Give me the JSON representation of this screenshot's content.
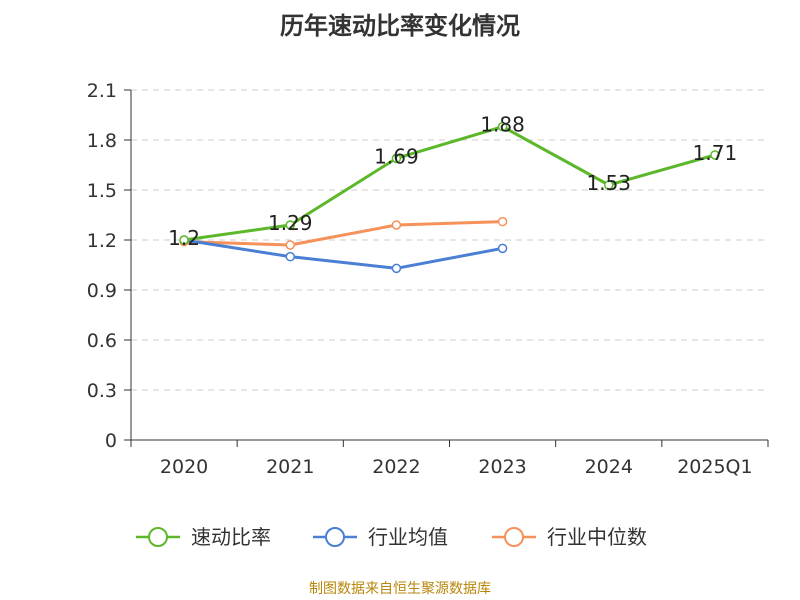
{
  "chart_data": {
    "type": "line",
    "title": "历年速动比率变化情况",
    "categories": [
      "2020",
      "2021",
      "2022",
      "2023",
      "2024",
      "2025Q1"
    ],
    "ylim": [
      0,
      2.1
    ],
    "yticks": [
      "0",
      "0.3",
      "0.6",
      "0.9",
      "1.2",
      "1.5",
      "1.8",
      "2.1"
    ],
    "grid": true,
    "legend_position": "bottom",
    "series": [
      {
        "name": "速动比率",
        "color": "#5cb82a",
        "values": [
          1.2,
          1.29,
          1.69,
          1.88,
          1.53,
          1.71
        ],
        "labels": [
          "1.2",
          "1.29",
          "1.69",
          "1.88",
          "1.53",
          "1.71"
        ]
      },
      {
        "name": "行业均值",
        "color": "#4a7fd4",
        "values": [
          1.2,
          1.1,
          1.03,
          1.15,
          null,
          null
        ]
      },
      {
        "name": "行业中位数",
        "color": "#f5915a",
        "values": [
          1.19,
          1.17,
          1.29,
          1.31,
          null,
          null
        ]
      }
    ]
  },
  "footer": "制图数据来自恒生聚源数据库"
}
